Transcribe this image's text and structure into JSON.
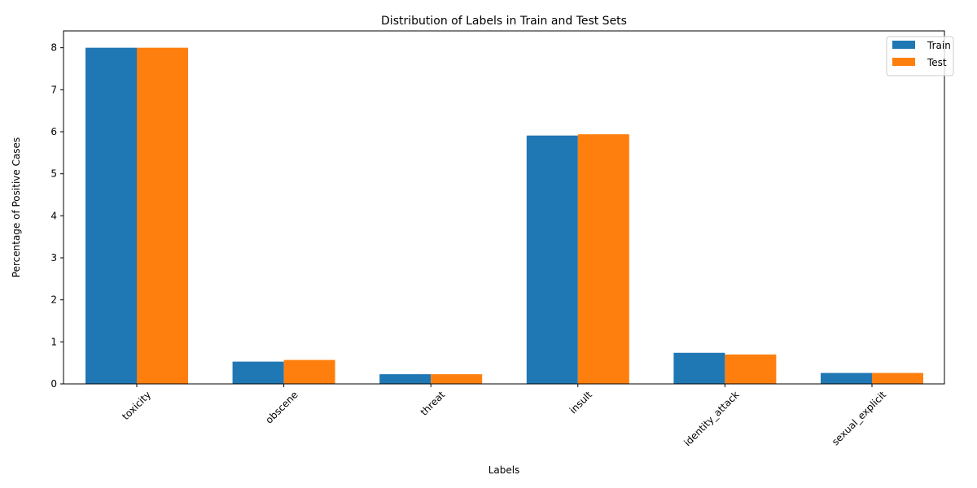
{
  "chart_data": {
    "type": "bar",
    "title": "Distribution of Labels in Train and Test Sets",
    "xlabel": "Labels",
    "ylabel": "Percentage of Positive Cases",
    "categories": [
      "toxicity",
      "obscene",
      "threat",
      "insult",
      "identity_attack",
      "sexual_explicit"
    ],
    "series": [
      {
        "name": "Train",
        "color": "#1f77b4",
        "values": [
          8.0,
          0.53,
          0.23,
          5.91,
          0.74,
          0.26
        ]
      },
      {
        "name": "Test",
        "color": "#ff7f0e",
        "values": [
          8.0,
          0.57,
          0.23,
          5.94,
          0.7,
          0.26
        ]
      }
    ],
    "ylim": [
      0,
      8.4
    ],
    "yticks": [
      0,
      1,
      2,
      3,
      4,
      5,
      6,
      7,
      8
    ],
    "grid": false,
    "legend_position": "top-right",
    "xtick_rotation": 45
  }
}
